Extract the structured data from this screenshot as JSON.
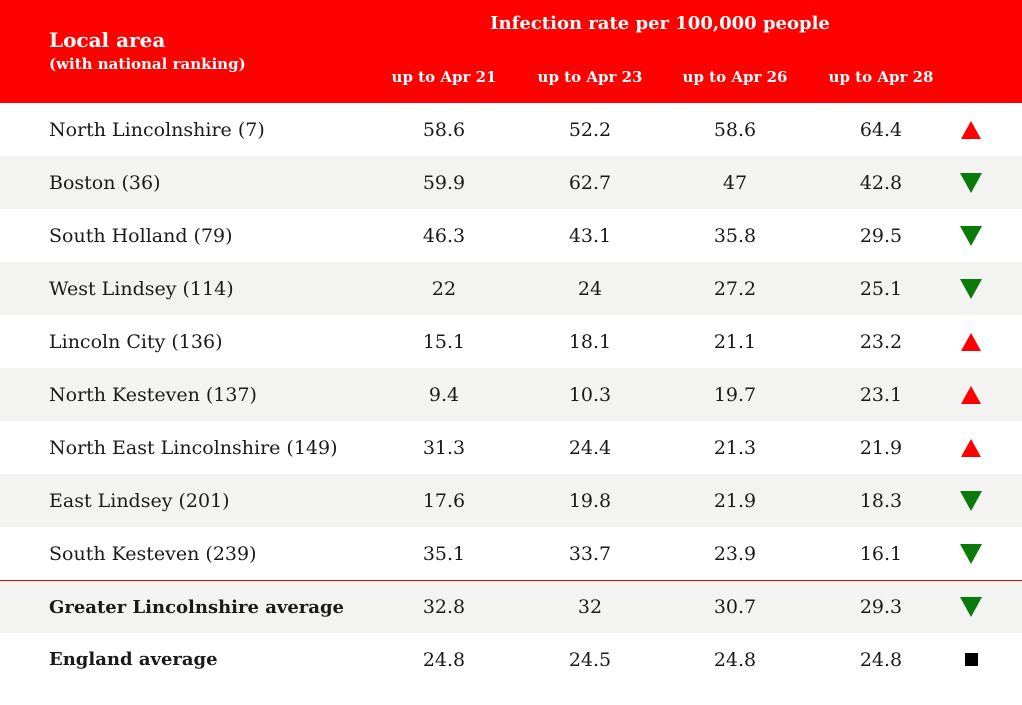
{
  "header": {
    "area_title": "Local area",
    "area_subtitle": "(with national ranking)",
    "rate_title": "Infection rate per 100,000 people",
    "columns": [
      "up to Apr 21",
      "up to Apr 23",
      "up to Apr 26",
      "up to Apr 28"
    ]
  },
  "rows": [
    {
      "name": "North Lincolnshire (7)",
      "values": [
        "58.6",
        "52.2",
        "58.6",
        "64.4"
      ],
      "trend": "up"
    },
    {
      "name": "Boston (36)",
      "values": [
        "59.9",
        "62.7",
        "47",
        "42.8"
      ],
      "trend": "down"
    },
    {
      "name": "South Holland (79)",
      "values": [
        "46.3",
        "43.1",
        "35.8",
        "29.5"
      ],
      "trend": "down"
    },
    {
      "name": "West Lindsey (114)",
      "values": [
        "22",
        "24",
        "27.2",
        "25.1"
      ],
      "trend": "down"
    },
    {
      "name": "Lincoln City (136)",
      "values": [
        "15.1",
        "18.1",
        "21.1",
        "23.2"
      ],
      "trend": "up"
    },
    {
      "name": "North Kesteven (137)",
      "values": [
        "9.4",
        "10.3",
        "19.7",
        "23.1"
      ],
      "trend": "up"
    },
    {
      "name": "North East Lincolnshire (149)",
      "values": [
        "31.3",
        "24.4",
        "21.3",
        "21.9"
      ],
      "trend": "up"
    },
    {
      "name": "East Lindsey (201)",
      "values": [
        "17.6",
        "19.8",
        "21.9",
        "18.3"
      ],
      "trend": "down"
    },
    {
      "name": "South Kesteven (239)",
      "values": [
        "35.1",
        "33.7",
        "23.9",
        "16.1"
      ],
      "trend": "down"
    },
    {
      "name": "Greater Lincolnshire average",
      "values": [
        "32.8",
        "32",
        "30.7",
        "29.3"
      ],
      "trend": "down"
    },
    {
      "name": "England average",
      "values": [
        "24.8",
        "24.5",
        "24.8",
        "24.8"
      ],
      "trend": "flat"
    }
  ],
  "colors": {
    "header_bg": "#ff0000",
    "up": "#ff0000",
    "down": "#0a7a0a",
    "flat": "#000000"
  }
}
